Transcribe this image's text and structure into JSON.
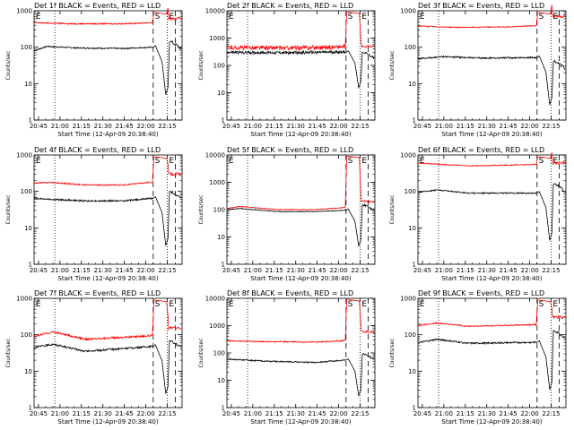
{
  "chart_data": [
    {
      "type": "line",
      "title": "Det 1f BLACK = Events, RED = LLD",
      "xlabel": "Start Time (12-Apr-09 20:38:40)",
      "ylabel": "Counts/sec",
      "y_scale": "log",
      "ylim": [
        1,
        1000
      ],
      "x_ticks": [
        "20:45",
        "21:00",
        "21:15",
        "21:30",
        "21:45",
        "22:00",
        "22:15"
      ],
      "y_ticks": [
        "1",
        "10",
        "100",
        "1000"
      ],
      "markers": [
        "E",
        "S",
        "E"
      ],
      "series": [
        {
          "name": "Events",
          "color": "#000000",
          "level": 90,
          "key": [
            [
              0,
              80
            ],
            [
              0.1,
              105
            ],
            [
              0.35,
              95
            ],
            [
              0.7,
              92
            ],
            [
              0.93,
              100
            ]
          ],
          "noise": 0.04,
          "spike": "down",
          "after": 140
        },
        {
          "name": "LLD",
          "color": "#ff0000",
          "level": 500,
          "key": [
            [
              0,
              470
            ],
            [
              0.3,
              440
            ],
            [
              0.7,
              440
            ],
            [
              0.93,
              470
            ]
          ],
          "noise": 0.04,
          "spike": "up",
          "after": 600
        }
      ]
    },
    {
      "type": "line",
      "title": "Det 2f BLACK = Events, RED = LLD",
      "xlabel": "Start Time (12-Apr-09 20:38:40)",
      "ylabel": "Counts/sec",
      "y_scale": "log",
      "ylim": [
        1,
        10000
      ],
      "x_ticks": [
        "20:45",
        "21:00",
        "21:15",
        "21:30",
        "21:45",
        "22:00",
        "22:15"
      ],
      "y_ticks": [
        "1",
        "10",
        "100",
        "1000",
        "10000"
      ],
      "markers": [
        "E",
        "S",
        "E"
      ],
      "series": [
        {
          "name": "Events",
          "color": "#000000",
          "key": [
            [
              0,
              300
            ],
            [
              0.5,
              290
            ],
            [
              0.93,
              310
            ]
          ],
          "noise": 0.12,
          "spike": "down",
          "after": 300
        },
        {
          "name": "LLD",
          "color": "#ff0000",
          "key": [
            [
              0,
              450
            ],
            [
              0.5,
              430
            ],
            [
              0.93,
              480
            ]
          ],
          "noise": 0.18,
          "spike": "up",
          "after": 500
        }
      ]
    },
    {
      "type": "line",
      "title": "Det 3f BLACK = Events, RED = LLD",
      "xlabel": "Start Time (12-Apr-09 20:38:40)",
      "ylabel": "Counts/sec",
      "y_scale": "log",
      "ylim": [
        1,
        1000
      ],
      "x_ticks": [
        "20:45",
        "21:00",
        "21:15",
        "21:30",
        "21:45",
        "22:00",
        "22:15"
      ],
      "y_ticks": [
        "1",
        "10",
        "100",
        "1000"
      ],
      "markers": [
        "E",
        "S",
        "E"
      ],
      "series": [
        {
          "name": "Events",
          "color": "#000000",
          "key": [
            [
              0,
              48
            ],
            [
              0.2,
              55
            ],
            [
              0.5,
              50
            ],
            [
              0.93,
              52
            ]
          ],
          "noise": 0.05,
          "spike": "down",
          "after": 40
        },
        {
          "name": "LLD",
          "color": "#ff0000",
          "key": [
            [
              0,
              380
            ],
            [
              0.3,
              350
            ],
            [
              0.7,
              360
            ],
            [
              0.93,
              390
            ]
          ],
          "noise": 0.03,
          "spike": "up",
          "after": 700
        }
      ]
    },
    {
      "type": "line",
      "title": "Det 4f BLACK = Events, RED = LLD",
      "xlabel": "Start Time (12-Apr-09 20:38:40)",
      "ylabel": "Counts/sec",
      "y_scale": "log",
      "ylim": [
        1,
        1000
      ],
      "x_ticks": [
        "20:45",
        "21:00",
        "21:15",
        "21:30",
        "21:45",
        "22:00",
        "22:15"
      ],
      "y_ticks": [
        "1",
        "10",
        "100",
        "1000"
      ],
      "markers": [
        "E",
        "S",
        "E"
      ],
      "series": [
        {
          "name": "Events",
          "color": "#000000",
          "key": [
            [
              0,
              65
            ],
            [
              0.15,
              60
            ],
            [
              0.4,
              55
            ],
            [
              0.7,
              55
            ],
            [
              0.93,
              65
            ]
          ],
          "noise": 0.05,
          "spike": "down",
          "after": 100
        },
        {
          "name": "LLD",
          "color": "#ff0000",
          "key": [
            [
              0,
              170
            ],
            [
              0.15,
              175
            ],
            [
              0.4,
              150
            ],
            [
              0.7,
              150
            ],
            [
              0.93,
              180
            ]
          ],
          "noise": 0.04,
          "spike": "up",
          "after": 300
        }
      ]
    },
    {
      "type": "line",
      "title": "Det 5f BLACK = Events, RED = LLD",
      "xlabel": "Start Time (12-Apr-09 20:38:40)",
      "ylabel": "Counts/sec",
      "y_scale": "log",
      "ylim": [
        1,
        10000
      ],
      "x_ticks": [
        "20:45",
        "21:00",
        "21:15",
        "21:30",
        "21:45",
        "22:00",
        "22:15"
      ],
      "y_ticks": [
        "1",
        "10",
        "100",
        "1000",
        "10000"
      ],
      "markers": [
        "E",
        "S",
        "E"
      ],
      "series": [
        {
          "name": "Events",
          "color": "#000000",
          "key": [
            [
              0,
              100
            ],
            [
              0.1,
              110
            ],
            [
              0.4,
              85
            ],
            [
              0.7,
              85
            ],
            [
              0.93,
              95
            ]
          ],
          "noise": 0.03,
          "spike": "down",
          "after": 150
        },
        {
          "name": "LLD",
          "color": "#ff0000",
          "key": [
            [
              0,
              110
            ],
            [
              0.1,
              130
            ],
            [
              0.4,
              100
            ],
            [
              0.7,
              100
            ],
            [
              0.93,
              120
            ]
          ],
          "noise": 0.03,
          "spike": "up",
          "after": 200
        }
      ]
    },
    {
      "type": "line",
      "title": "Det 6f BLACK = Events, RED = LLD",
      "xlabel": "Start Time (12-Apr-09 20:38:40)",
      "ylabel": "Counts/sec",
      "y_scale": "log",
      "ylim": [
        1,
        1000
      ],
      "x_ticks": [
        "20:45",
        "21:00",
        "21:15",
        "21:30",
        "21:45",
        "22:00",
        "22:15"
      ],
      "y_ticks": [
        "1",
        "10",
        "100",
        "1000"
      ],
      "markers": [
        "E",
        "S",
        "E"
      ],
      "series": [
        {
          "name": "Events",
          "color": "#000000",
          "key": [
            [
              0,
              95
            ],
            [
              0.15,
              110
            ],
            [
              0.4,
              90
            ],
            [
              0.93,
              90
            ]
          ],
          "noise": 0.04,
          "spike": "down",
          "after": 160
        },
        {
          "name": "LLD",
          "color": "#ff0000",
          "key": [
            [
              0,
              600
            ],
            [
              0.15,
              560
            ],
            [
              0.4,
              500
            ],
            [
              0.93,
              550
            ]
          ],
          "noise": 0.03,
          "spike": "up",
          "after": 600
        }
      ]
    },
    {
      "type": "line",
      "title": "Det 7f BLACK = Events, RED = LLD",
      "xlabel": "Start Time (12-Apr-09 20:38:40)",
      "ylabel": "Counts/sec",
      "y_scale": "log",
      "ylim": [
        1,
        1000
      ],
      "x_ticks": [
        "20:45",
        "21:00",
        "21:15",
        "21:30",
        "21:45",
        "22:00",
        "22:15"
      ],
      "y_ticks": [
        "1",
        "10",
        "100",
        "1000"
      ],
      "markers": [
        "E",
        "S",
        "E"
      ],
      "series": [
        {
          "name": "Events",
          "color": "#000000",
          "key": [
            [
              0,
              45
            ],
            [
              0.15,
              55
            ],
            [
              0.4,
              35
            ],
            [
              0.7,
              42
            ],
            [
              0.93,
              48
            ]
          ],
          "noise": 0.06,
          "spike": "down",
          "after": 70
        },
        {
          "name": "LLD",
          "color": "#ff0000",
          "key": [
            [
              0,
              90
            ],
            [
              0.15,
              120
            ],
            [
              0.4,
              75
            ],
            [
              0.7,
              85
            ],
            [
              0.93,
              95
            ]
          ],
          "noise": 0.06,
          "spike": "up",
          "after": 150
        }
      ]
    },
    {
      "type": "line",
      "title": "Det 8f BLACK = Events, RED = LLD",
      "xlabel": "Start Time (12-Apr-09 20:38:40)",
      "ylabel": "Counts/sec",
      "y_scale": "log",
      "ylim": [
        1,
        10000
      ],
      "x_ticks": [
        "20:45",
        "21:00",
        "21:15",
        "21:30",
        "21:45",
        "22:00",
        "22:15"
      ],
      "y_ticks": [
        "1",
        "10",
        "100",
        "1000",
        "10000"
      ],
      "markers": [
        "E",
        "S",
        "E"
      ],
      "series": [
        {
          "name": "Events",
          "color": "#000000",
          "key": [
            [
              0,
              60
            ],
            [
              0.3,
              50
            ],
            [
              0.7,
              45
            ],
            [
              0.93,
              55
            ]
          ],
          "noise": 0.05,
          "spike": "down",
          "after": 90
        },
        {
          "name": "LLD",
          "color": "#ff0000",
          "key": [
            [
              0,
              280
            ],
            [
              0.3,
              260
            ],
            [
              0.7,
              250
            ],
            [
              0.93,
              280
            ]
          ],
          "noise": 0.05,
          "spike": "up",
          "after": 600
        }
      ]
    },
    {
      "type": "line",
      "title": "Det 9f BLACK = Events, RED = LLD",
      "xlabel": "Start Time (12-Apr-09 20:38:40)",
      "ylabel": "Counts/sec",
      "y_scale": "log",
      "ylim": [
        1,
        1000
      ],
      "x_ticks": [
        "20:45",
        "21:00",
        "21:15",
        "21:30",
        "21:45",
        "22:00",
        "22:15"
      ],
      "y_ticks": [
        "1",
        "10",
        "100",
        "1000"
      ],
      "markers": [
        "E",
        "S",
        "E"
      ],
      "series": [
        {
          "name": "Events",
          "color": "#000000",
          "key": [
            [
              0,
              60
            ],
            [
              0.15,
              75
            ],
            [
              0.4,
              58
            ],
            [
              0.93,
              62
            ]
          ],
          "noise": 0.05,
          "spike": "down",
          "after": 130
        },
        {
          "name": "LLD",
          "color": "#ff0000",
          "key": [
            [
              0,
              180
            ],
            [
              0.15,
              210
            ],
            [
              0.4,
              170
            ],
            [
              0.93,
              190
            ]
          ],
          "noise": 0.04,
          "spike": "up",
          "after": 300
        }
      ]
    }
  ]
}
